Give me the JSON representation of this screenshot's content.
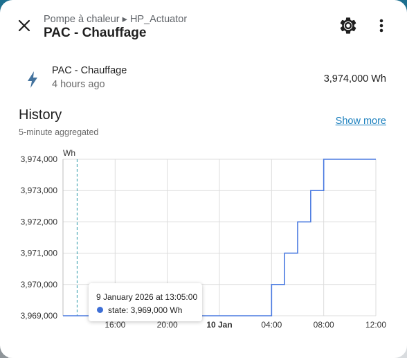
{
  "header": {
    "breadcrumb": "Pompe à chaleur ▸ HP_Actuator",
    "title": "PAC - Chauffage",
    "close_icon": "close-icon",
    "settings_icon": "gear-icon",
    "more_icon": "more-vertical-icon"
  },
  "entity": {
    "icon": "lightning-bolt-icon",
    "name": "PAC - Chauffage",
    "last_changed": "4 hours ago",
    "value": "3,974,000 Wh"
  },
  "history": {
    "title": "History",
    "subtitle": "5-minute aggregated",
    "show_more": "Show more"
  },
  "tooltip": {
    "title": "9 January 2026 at 13:05:00",
    "value": "state: 3,969,000 Wh"
  },
  "colors": {
    "line": "#4a7ae0",
    "tooltip_dot": "#3e6fd6",
    "link": "#1a7fbd",
    "grid": "#dcdcdc",
    "cursor": "#2a9aa8"
  },
  "chart_data": {
    "type": "line",
    "ylabel": "Wh",
    "y_ticks": [
      3969000,
      3970000,
      3971000,
      3972000,
      3973000,
      3974000
    ],
    "y_tick_labels": [
      "3,969,000",
      "3,970,000",
      "3,971,000",
      "3,972,000",
      "3,973,000",
      "3,974,000"
    ],
    "ylim": [
      3969000,
      3974000
    ],
    "x_ticks": [
      "16:00",
      "20:00",
      "10 Jan",
      "04:00",
      "08:00",
      "12:00"
    ],
    "x_ticks_bold": [
      false,
      false,
      true,
      false,
      false,
      false
    ],
    "x_tick_hours": [
      16,
      20,
      24,
      28,
      32,
      36
    ],
    "x_range_hours": [
      12,
      36
    ],
    "line_step": "end",
    "points": [
      {
        "t": 12.0,
        "y": 3969000
      },
      {
        "t": 27.0,
        "y": 3969000
      },
      {
        "t": 28.0,
        "y": 3970000
      },
      {
        "t": 29.0,
        "y": 3971000
      },
      {
        "t": 30.0,
        "y": 3972000
      },
      {
        "t": 31.0,
        "y": 3973000
      },
      {
        "t": 32.0,
        "y": 3974000
      },
      {
        "t": 36.0,
        "y": 3974000
      }
    ],
    "cursor_t": 13.083,
    "grid": true
  }
}
